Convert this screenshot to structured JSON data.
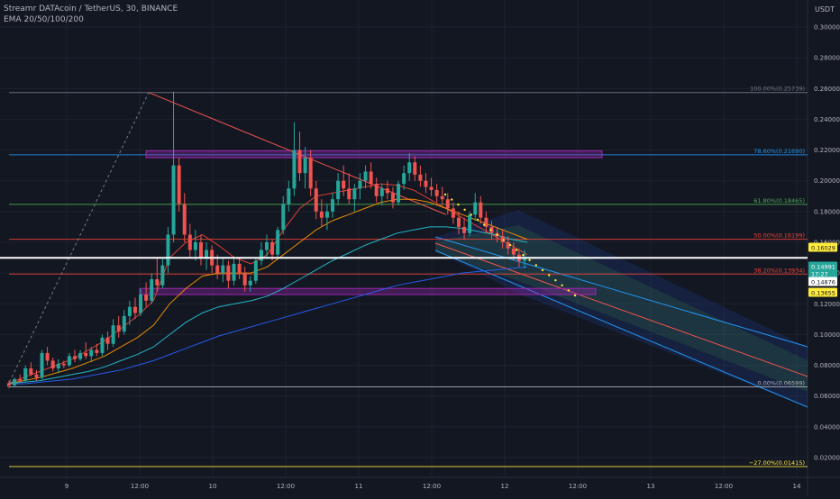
{
  "header": {
    "symbol_line": "Streamr DATAcoin / TetherUS, 30, BINANCE",
    "indicator_line": "EMA 20/50/100/200",
    "currency": "USDT"
  },
  "colors": {
    "background": "#131722",
    "grid": "#1e222d",
    "text": "#b2b5be",
    "up": "#26a69a",
    "down": "#ef5350",
    "fib_100": "#787b86",
    "fib_786": "#2196f3",
    "fib_618": "#4caf50",
    "fib_50": "#f44336",
    "fib_382": "#f44336",
    "fib_0": "#b2b5be",
    "fib_neg27": "#ffeb3b",
    "zone": "#9c27b0",
    "channel_upper": "#2962ff",
    "channel_mid": "#4caf50",
    "ema20": "#f44336",
    "ema50": "#ff9800",
    "ema100": "#26c6da",
    "ema200": "#2962ff",
    "price_line": "#ffffff",
    "label_yellow": "#ffeb3b",
    "label_green": "#26a69a"
  },
  "chart_data": {
    "type": "candlestick",
    "x_ticks": [
      "9",
      "12:00",
      "10",
      "12:00",
      "11",
      "12:00",
      "12",
      "12:00",
      "13",
      "12:00",
      "14"
    ],
    "y_ticks": [
      "0.30000",
      "0.28000",
      "0.26000",
      "0.24000",
      "0.22000",
      "0.20000",
      "0.18000",
      "0.16000",
      "0.14000",
      "0.12000",
      "0.10000",
      "0.08000",
      "0.06000",
      "0.04000",
      "0.02000"
    ],
    "y_tick_values": [
      0.3,
      0.28,
      0.26,
      0.24,
      0.22,
      0.2,
      0.18,
      0.16,
      0.14,
      0.12,
      0.1,
      0.08,
      0.06,
      0.04,
      0.02
    ],
    "ylim": [
      0.003,
      0.32
    ],
    "fib_levels": [
      {
        "label": "100.00%(0.25739)",
        "value": 0.25739
      },
      {
        "label": "78.60%(0.21690)",
        "value": 0.2169
      },
      {
        "label": "61.80%(0.18465)",
        "value": 0.18465
      },
      {
        "label": "50.00%(0.16199)",
        "value": 0.16199
      },
      {
        "label": "38.20%(0.13934)",
        "value": 0.13934
      },
      {
        "label": "0.00%(0.06599)",
        "value": 0.06599
      },
      {
        "label": "−27.00%(0.01415)",
        "value": 0.01415
      }
    ],
    "price_labels": [
      {
        "text": "0.16029",
        "value": 0.16029,
        "style": "yellow"
      },
      {
        "text": "0.14991",
        "value": 0.14991,
        "style": "green"
      },
      {
        "text": "17:27",
        "value": 0.1464,
        "style": "green-sub"
      },
      {
        "text": "0.14876",
        "value": 0.14876,
        "style": "white"
      },
      {
        "text": "0.13655",
        "value": 0.13655,
        "style": "yellow"
      }
    ],
    "current_price": 0.14991,
    "candles": [
      [
        0.068,
        0.07,
        0.065,
        0.067
      ],
      [
        0.067,
        0.072,
        0.066,
        0.071
      ],
      [
        0.071,
        0.074,
        0.069,
        0.07
      ],
      [
        0.07,
        0.08,
        0.069,
        0.078
      ],
      [
        0.078,
        0.082,
        0.073,
        0.074
      ],
      [
        0.074,
        0.077,
        0.07,
        0.072
      ],
      [
        0.072,
        0.09,
        0.071,
        0.088
      ],
      [
        0.088,
        0.092,
        0.08,
        0.083
      ],
      [
        0.083,
        0.085,
        0.076,
        0.078
      ],
      [
        0.078,
        0.084,
        0.075,
        0.081
      ],
      [
        0.081,
        0.083,
        0.078,
        0.08
      ],
      [
        0.08,
        0.088,
        0.079,
        0.086
      ],
      [
        0.086,
        0.09,
        0.082,
        0.084
      ],
      [
        0.084,
        0.09,
        0.083,
        0.088
      ],
      [
        0.088,
        0.095,
        0.084,
        0.086
      ],
      [
        0.086,
        0.092,
        0.082,
        0.09
      ],
      [
        0.09,
        0.094,
        0.086,
        0.088
      ],
      [
        0.088,
        0.1,
        0.086,
        0.098
      ],
      [
        0.098,
        0.102,
        0.09,
        0.094
      ],
      [
        0.094,
        0.11,
        0.092,
        0.106
      ],
      [
        0.106,
        0.112,
        0.098,
        0.102
      ],
      [
        0.102,
        0.116,
        0.1,
        0.112
      ],
      [
        0.112,
        0.122,
        0.106,
        0.118
      ],
      [
        0.118,
        0.124,
        0.11,
        0.114
      ],
      [
        0.114,
        0.13,
        0.112,
        0.126
      ],
      [
        0.126,
        0.134,
        0.118,
        0.122
      ],
      [
        0.122,
        0.14,
        0.12,
        0.136
      ],
      [
        0.136,
        0.15,
        0.128,
        0.132
      ],
      [
        0.132,
        0.15,
        0.13,
        0.145
      ],
      [
        0.145,
        0.17,
        0.14,
        0.165
      ],
      [
        0.165,
        0.258,
        0.16,
        0.21
      ],
      [
        0.21,
        0.215,
        0.18,
        0.185
      ],
      [
        0.185,
        0.192,
        0.16,
        0.165
      ],
      [
        0.165,
        0.172,
        0.15,
        0.155
      ],
      [
        0.155,
        0.168,
        0.148,
        0.16
      ],
      [
        0.16,
        0.165,
        0.145,
        0.15
      ],
      [
        0.15,
        0.16,
        0.142,
        0.155
      ],
      [
        0.155,
        0.158,
        0.14,
        0.145
      ],
      [
        0.145,
        0.152,
        0.136,
        0.14
      ],
      [
        0.14,
        0.15,
        0.134,
        0.145
      ],
      [
        0.145,
        0.148,
        0.13,
        0.135
      ],
      [
        0.135,
        0.15,
        0.132,
        0.146
      ],
      [
        0.146,
        0.15,
        0.136,
        0.14
      ],
      [
        0.14,
        0.144,
        0.128,
        0.132
      ],
      [
        0.132,
        0.138,
        0.128,
        0.135
      ],
      [
        0.135,
        0.15,
        0.133,
        0.148
      ],
      [
        0.148,
        0.16,
        0.145,
        0.155
      ],
      [
        0.155,
        0.165,
        0.15,
        0.16
      ],
      [
        0.16,
        0.162,
        0.148,
        0.152
      ],
      [
        0.152,
        0.17,
        0.15,
        0.168
      ],
      [
        0.168,
        0.19,
        0.165,
        0.185
      ],
      [
        0.185,
        0.2,
        0.18,
        0.195
      ],
      [
        0.195,
        0.238,
        0.19,
        0.22
      ],
      [
        0.22,
        0.232,
        0.2,
        0.205
      ],
      [
        0.205,
        0.222,
        0.195,
        0.215
      ],
      [
        0.215,
        0.22,
        0.19,
        0.195
      ],
      [
        0.195,
        0.2,
        0.175,
        0.18
      ],
      [
        0.18,
        0.188,
        0.17,
        0.176
      ],
      [
        0.176,
        0.185,
        0.168,
        0.18
      ],
      [
        0.18,
        0.192,
        0.176,
        0.188
      ],
      [
        0.188,
        0.205,
        0.184,
        0.2
      ],
      [
        0.2,
        0.21,
        0.19,
        0.195
      ],
      [
        0.195,
        0.205,
        0.185,
        0.188
      ],
      [
        0.188,
        0.198,
        0.18,
        0.195
      ],
      [
        0.195,
        0.205,
        0.188,
        0.2
      ],
      [
        0.2,
        0.21,
        0.195,
        0.206
      ],
      [
        0.206,
        0.212,
        0.195,
        0.198
      ],
      [
        0.198,
        0.202,
        0.186,
        0.19
      ],
      [
        0.19,
        0.198,
        0.184,
        0.195
      ],
      [
        0.195,
        0.2,
        0.188,
        0.192
      ],
      [
        0.192,
        0.196,
        0.182,
        0.186
      ],
      [
        0.186,
        0.2,
        0.184,
        0.198
      ],
      [
        0.198,
        0.21,
        0.194,
        0.205
      ],
      [
        0.205,
        0.218,
        0.2,
        0.212
      ],
      [
        0.212,
        0.216,
        0.2,
        0.204
      ],
      [
        0.204,
        0.21,
        0.196,
        0.2
      ],
      [
        0.2,
        0.205,
        0.192,
        0.196
      ],
      [
        0.196,
        0.202,
        0.19,
        0.194
      ],
      [
        0.194,
        0.198,
        0.186,
        0.19
      ],
      [
        0.19,
        0.196,
        0.184,
        0.188
      ],
      [
        0.188,
        0.192,
        0.178,
        0.182
      ],
      [
        0.182,
        0.186,
        0.172,
        0.176
      ],
      [
        0.176,
        0.18,
        0.165,
        0.17
      ],
      [
        0.17,
        0.176,
        0.162,
        0.166
      ],
      [
        0.166,
        0.18,
        0.164,
        0.178
      ],
      [
        0.178,
        0.192,
        0.174,
        0.186
      ],
      [
        0.186,
        0.19,
        0.172,
        0.176
      ],
      [
        0.176,
        0.18,
        0.166,
        0.17
      ],
      [
        0.17,
        0.174,
        0.162,
        0.166
      ],
      [
        0.166,
        0.17,
        0.16,
        0.164
      ],
      [
        0.164,
        0.168,
        0.156,
        0.16
      ],
      [
        0.16,
        0.164,
        0.152,
        0.156
      ],
      [
        0.156,
        0.16,
        0.148,
        0.152
      ],
      [
        0.152,
        0.156,
        0.144,
        0.148
      ],
      [
        0.148,
        0.155,
        0.143,
        0.15
      ]
    ],
    "ema_series": [
      {
        "name": "EMA20",
        "color_key": "ema20",
        "values": [
          0.068,
          0.072,
          0.076,
          0.08,
          0.084,
          0.09,
          0.096,
          0.104,
          0.112,
          0.122,
          0.15,
          0.16,
          0.165,
          0.158,
          0.15,
          0.146,
          0.152,
          0.168,
          0.182,
          0.19,
          0.192,
          0.194,
          0.196,
          0.198,
          0.197,
          0.194,
          0.188,
          0.182,
          0.176,
          0.17,
          0.164,
          0.158,
          0.152
        ]
      },
      {
        "name": "EMA50",
        "color_key": "ema50",
        "values": [
          0.068,
          0.07,
          0.072,
          0.075,
          0.078,
          0.082,
          0.086,
          0.092,
          0.098,
          0.106,
          0.12,
          0.13,
          0.138,
          0.14,
          0.14,
          0.14,
          0.144,
          0.152,
          0.16,
          0.168,
          0.174,
          0.178,
          0.182,
          0.186,
          0.188,
          0.188,
          0.186,
          0.182,
          0.178,
          0.174,
          0.17,
          0.166,
          0.162
        ]
      },
      {
        "name": "EMA100",
        "color_key": "ema100",
        "values": [
          0.068,
          0.069,
          0.07,
          0.072,
          0.074,
          0.076,
          0.079,
          0.083,
          0.087,
          0.092,
          0.1,
          0.108,
          0.114,
          0.118,
          0.12,
          0.122,
          0.125,
          0.13,
          0.136,
          0.142,
          0.148,
          0.153,
          0.158,
          0.162,
          0.166,
          0.168,
          0.17,
          0.17,
          0.169,
          0.167,
          0.165,
          0.162,
          0.16
        ]
      },
      {
        "name": "EMA200",
        "color_key": "ema200",
        "values": [
          0.068,
          0.068,
          0.069,
          0.07,
          0.071,
          0.073,
          0.075,
          0.077,
          0.08,
          0.083,
          0.087,
          0.091,
          0.095,
          0.099,
          0.102,
          0.105,
          0.108,
          0.111,
          0.114,
          0.117,
          0.12,
          0.123,
          0.126,
          0.129,
          0.132,
          0.134,
          0.136,
          0.138,
          0.14,
          0.141,
          0.142,
          0.143,
          0.144
        ]
      }
    ]
  }
}
